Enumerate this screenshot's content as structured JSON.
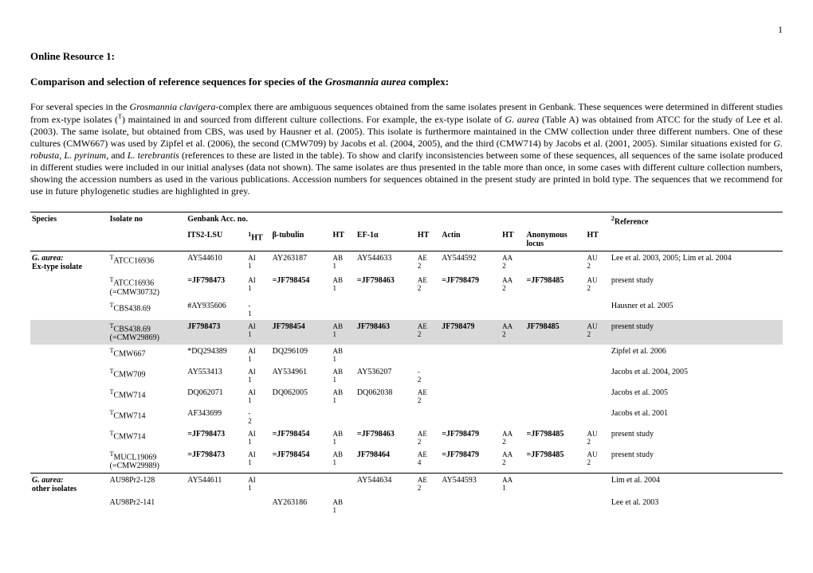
{
  "page_number": "1",
  "heading1": "Online Resource 1:",
  "heading2_pre": "Comparison and selection of reference sequences for species of the ",
  "heading2_it": "Grosmannia aurea",
  "heading2_post": " complex:",
  "paragraph_parts": {
    "p1a": "For several species in the ",
    "p1b": "Grosmannia clavigera",
    "p1c": "-complex there are ambiguous sequences obtained from the same isolates present in Genbank. These sequences were determined in different studies from ex-type isolates (",
    "p1d": "T",
    "p1e": ") maintained in and sourced from different culture collections. For example, the ex-type isolate of ",
    "p1f": "G. aurea",
    "p1g": " (Table A) was obtained from ATCC for the study of Lee et al. (2003). The same isolate, but obtained from CBS, was used by Hausner et al. (2005). This isolate is furthermore maintained in the CMW collection under three different numbers. One of these cultures (CMW667) was used by Zipfel et al. (2006), the second (CMW709) by Jacobs et al. (2004, 2005), and the third (CMW714) by Jacobs et al. (2001, 2005). Similar situations existed for ",
    "p1h": "G. robusta",
    "p1i": ", ",
    "p1j": "L. pyrinum",
    "p1k": ", and ",
    "p1l": "L. terebrantis",
    "p1m": " (references to these are listed in the table). To show and clarify inconsistencies between some of these sequences, all sequences of the same isolate produced in different studies were included in our initial analyses (data not shown). The same isolates are thus presented in the table more than once, in some cases with different culture collection numbers, showing the accession numbers as used in the various publications. Accession numbers for sequences obtained in the present study are printed in bold type. The sequences that we recommend for use in future phylogenetic studies are highlighted in grey."
  },
  "headers": {
    "species": "Species",
    "isolate": "Isolate no",
    "genbank": "Genbank Acc. no.",
    "reference_sup": "2",
    "reference": "Reference",
    "its": "ITS2-LSU",
    "ht_sup": "1",
    "ht": "HT",
    "btub": "β-tubulin",
    "ht2": "HT",
    "ef": "EF-1α",
    "ht3": "HT",
    "actin": "Actin",
    "ht4": "HT",
    "anon": "Anonymous locus",
    "ht5": "HT"
  },
  "rows": [
    {
      "species_it": "G. aurea:",
      "species_sub": "Ex-type isolate",
      "iso_sup": "T",
      "iso": "ATCC16936",
      "its": "AY544610",
      "ht1": "AI1",
      "btub": "AY263187",
      "ht2": "AB1",
      "ef": "AY544633",
      "ht3": "AE2",
      "actin": "AY544592",
      "ht4": "AA2",
      "anon": "",
      "ht5": "AU2",
      "ref": "Lee et al. 2003, 2005; Lim et al. 2004",
      "bold": false,
      "grey": false,
      "iso_sub": ""
    },
    {
      "species_it": "",
      "species_sub": "",
      "iso_sup": "T",
      "iso": "ATCC16936",
      "iso_sub": "(=CMW30732)",
      "its": "=JF798473",
      "ht1": "AI1",
      "btub": "=JF798454",
      "ht2": "AB1",
      "ef": "=JF798463",
      "ht3": "AE2",
      "actin": "=JF798479",
      "ht4": "AA2",
      "anon": "=JF798485",
      "ht5": "AU2",
      "ref": "present study",
      "bold": true,
      "grey": false
    },
    {
      "species_it": "",
      "species_sub": "",
      "iso_sup": "T",
      "iso": "CBS438.69",
      "iso_sub": "",
      "its": "#AY935606",
      "ht1": "-1",
      "btub": "",
      "ht2": "",
      "ef": "",
      "ht3": "",
      "actin": "",
      "ht4": "",
      "anon": "",
      "ht5": "",
      "ref": "Hausner et al. 2005",
      "bold": false,
      "grey": false
    },
    {
      "species_it": "",
      "species_sub": "",
      "iso_sup": "T",
      "iso": "CBS438.69",
      "iso_sub": "(=CMW29869)",
      "its": "JF798473",
      "ht1": "AI1",
      "btub": "JF798454",
      "ht2": "AB1",
      "ef": "JF798463",
      "ht3": "AE2",
      "actin": "JF798479",
      "ht4": "AA2",
      "anon": "JF798485",
      "ht5": "AU2",
      "ref": "present study",
      "bold": true,
      "grey": true
    },
    {
      "species_it": "",
      "species_sub": "",
      "iso_sup": "T",
      "iso": "CMW667",
      "iso_sub": "",
      "its": "*DQ294389",
      "ht1": "AI1",
      "btub": "DQ296109",
      "ht2": "AB1",
      "ef": "",
      "ht3": "",
      "actin": "",
      "ht4": "",
      "anon": "",
      "ht5": "",
      "ref": "Zipfel et al. 2006",
      "bold": false,
      "grey": false
    },
    {
      "species_it": "",
      "species_sub": "",
      "iso_sup": "T",
      "iso": "CMW709",
      "iso_sub": "",
      "its": "AY553413",
      "ht1": "AI1",
      "btub": "AY534961",
      "ht2": "AB1",
      "ef": "AY536207",
      "ht3": "-2",
      "actin": "",
      "ht4": "",
      "anon": "",
      "ht5": "",
      "ref": "Jacobs et al. 2004, 2005",
      "bold": false,
      "grey": false
    },
    {
      "species_it": "",
      "species_sub": "",
      "iso_sup": "T",
      "iso": "CMW714",
      "iso_sub": "",
      "its": "DQ062071",
      "ht1": "AI1",
      "btub": "DQ062005",
      "ht2": "AB1",
      "ef": "DQ062038",
      "ht3": "AE2",
      "actin": "",
      "ht4": "",
      "anon": "",
      "ht5": "",
      "ref": "Jacobs et al. 2005",
      "bold": false,
      "grey": false
    },
    {
      "species_it": "",
      "species_sub": "",
      "iso_sup": "T",
      "iso": "CMW714",
      "iso_sub": "",
      "its": "AF343699",
      "ht1": "-2",
      "btub": "",
      "ht2": "",
      "ef": "",
      "ht3": "",
      "actin": "",
      "ht4": "",
      "anon": "",
      "ht5": "",
      "ref": "Jacobs et al. 2001",
      "bold": false,
      "grey": false
    },
    {
      "species_it": "",
      "species_sub": "",
      "iso_sup": "T",
      "iso": "CMW714",
      "iso_sub": "",
      "its": "=JF798473",
      "ht1": "AI1",
      "btub": "=JF798454",
      "ht2": "AB1",
      "ef": "=JF798463",
      "ht3": "AE2",
      "actin": "=JF798479",
      "ht4": "AA2",
      "anon": "=JF798485",
      "ht5": "AU2",
      "ref": "present study",
      "bold": true,
      "grey": false
    },
    {
      "species_it": "",
      "species_sub": "",
      "iso_sup": "T",
      "iso": "MUCL19069",
      "iso_sub": "(=CMW29989)",
      "its": "=JF798473",
      "ht1": "AI1",
      "btub": "=JF798454",
      "ht2": "AB1",
      "ef": "JF798464",
      "ht3": "AE4",
      "actin": "=JF798479",
      "ht4": "AA2",
      "anon": "=JF798485",
      "ht5": "AU2",
      "ref": "present study",
      "bold": true,
      "grey": false
    },
    {
      "species_it": "G. aurea:",
      "species_sub": "other isolates",
      "iso_sup": "",
      "iso": "AU98Pr2-128",
      "iso_sub": "",
      "its": "AY544611",
      "ht1": "AI1",
      "btub": "",
      "ht2": "",
      "ef": "AY544634",
      "ht3": "AE2",
      "actin": "AY544593",
      "ht4": "AA1",
      "anon": "",
      "ht5": "",
      "ref": "Lim et al. 2004",
      "bold": false,
      "grey": false,
      "topline": true
    },
    {
      "species_it": "",
      "species_sub": "",
      "iso_sup": "",
      "iso": "AU98Pr2-141",
      "iso_sub": "",
      "its": "",
      "ht1": "",
      "btub": "AY263186",
      "ht2": "AB1",
      "ef": "",
      "ht3": "",
      "actin": "",
      "ht4": "",
      "anon": "",
      "ht5": "",
      "ref": "Lee et al. 2003",
      "bold": false,
      "grey": false
    }
  ],
  "col_widths": [
    "90",
    "90",
    "70",
    "28",
    "70",
    "28",
    "70",
    "28",
    "70",
    "28",
    "70",
    "28",
    "200"
  ]
}
